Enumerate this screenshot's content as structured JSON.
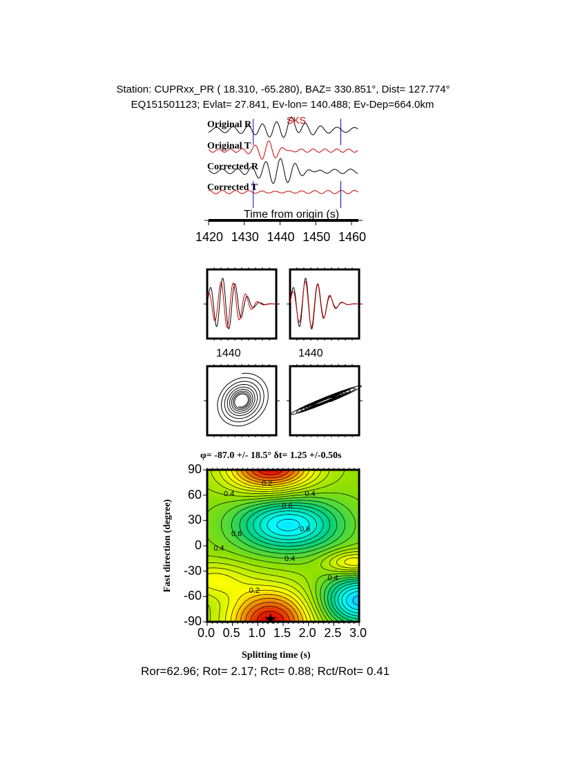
{
  "header": {
    "station_line": "Station: CUPRxx_PR (  18.310,  -65.280), BAZ=  330.851°, Dist=  127.774°",
    "event_line": "EQ151501123; Evlat=  27.841, Ev-lon= 140.488; Ev-Dep=664.0km"
  },
  "colors": {
    "original_R": "#000000",
    "original_T": "#cc0000",
    "window_marker": "#0000cc",
    "phase_label": "#cc0000"
  },
  "chart_data": [
    {
      "type": "line",
      "panel": "waveforms",
      "phase_label": "SKS",
      "trace_labels": [
        "Original R",
        "Original T",
        "Corrected R",
        "Corrected T"
      ],
      "xlabel": "Time from origin (s)",
      "xticks": [
        "1420",
        "1430",
        "1440",
        "1450",
        "1460"
      ],
      "xlim": [
        1420,
        1462
      ],
      "window": [
        1432.5,
        1457
      ]
    },
    {
      "type": "line",
      "panel": "fast-slow-comparison",
      "xticks": [
        "1440",
        "1440"
      ]
    },
    {
      "type": "line",
      "panel": "particle-motion"
    },
    {
      "type": "heatmap",
      "title": "φ= -87.0 +/- 18.5° δt= 1.25 +/-0.50s",
      "xlabel": "Splitting time (s)",
      "ylabel": "Fast direction (degree)",
      "xticks": [
        "0.0",
        "0.5",
        "1.0",
        "1.5",
        "2.0",
        "2.5",
        "3.0"
      ],
      "yticks": [
        "90",
        "60",
        "30",
        "0",
        "-30",
        "-60",
        "-90"
      ],
      "xlim": [
        0,
        3.0
      ],
      "ylim": [
        -90,
        90
      ],
      "contour_labels": [
        "0.2",
        "0.4",
        "0.4",
        "0.6",
        "0.6",
        "0.6",
        "0.4",
        "0.4",
        "0.4",
        "0.2"
      ],
      "best_fit": {
        "dt": 1.25,
        "phi": -87.0
      },
      "colormap": [
        "#e00000",
        "#ffff00",
        "#90e000",
        "#00d080",
        "#00ffff",
        "#3080ff"
      ]
    }
  ],
  "footer": "Ror=62.96; Rot= 2.17; Rct= 0.88; Rct/Rot= 0.41"
}
